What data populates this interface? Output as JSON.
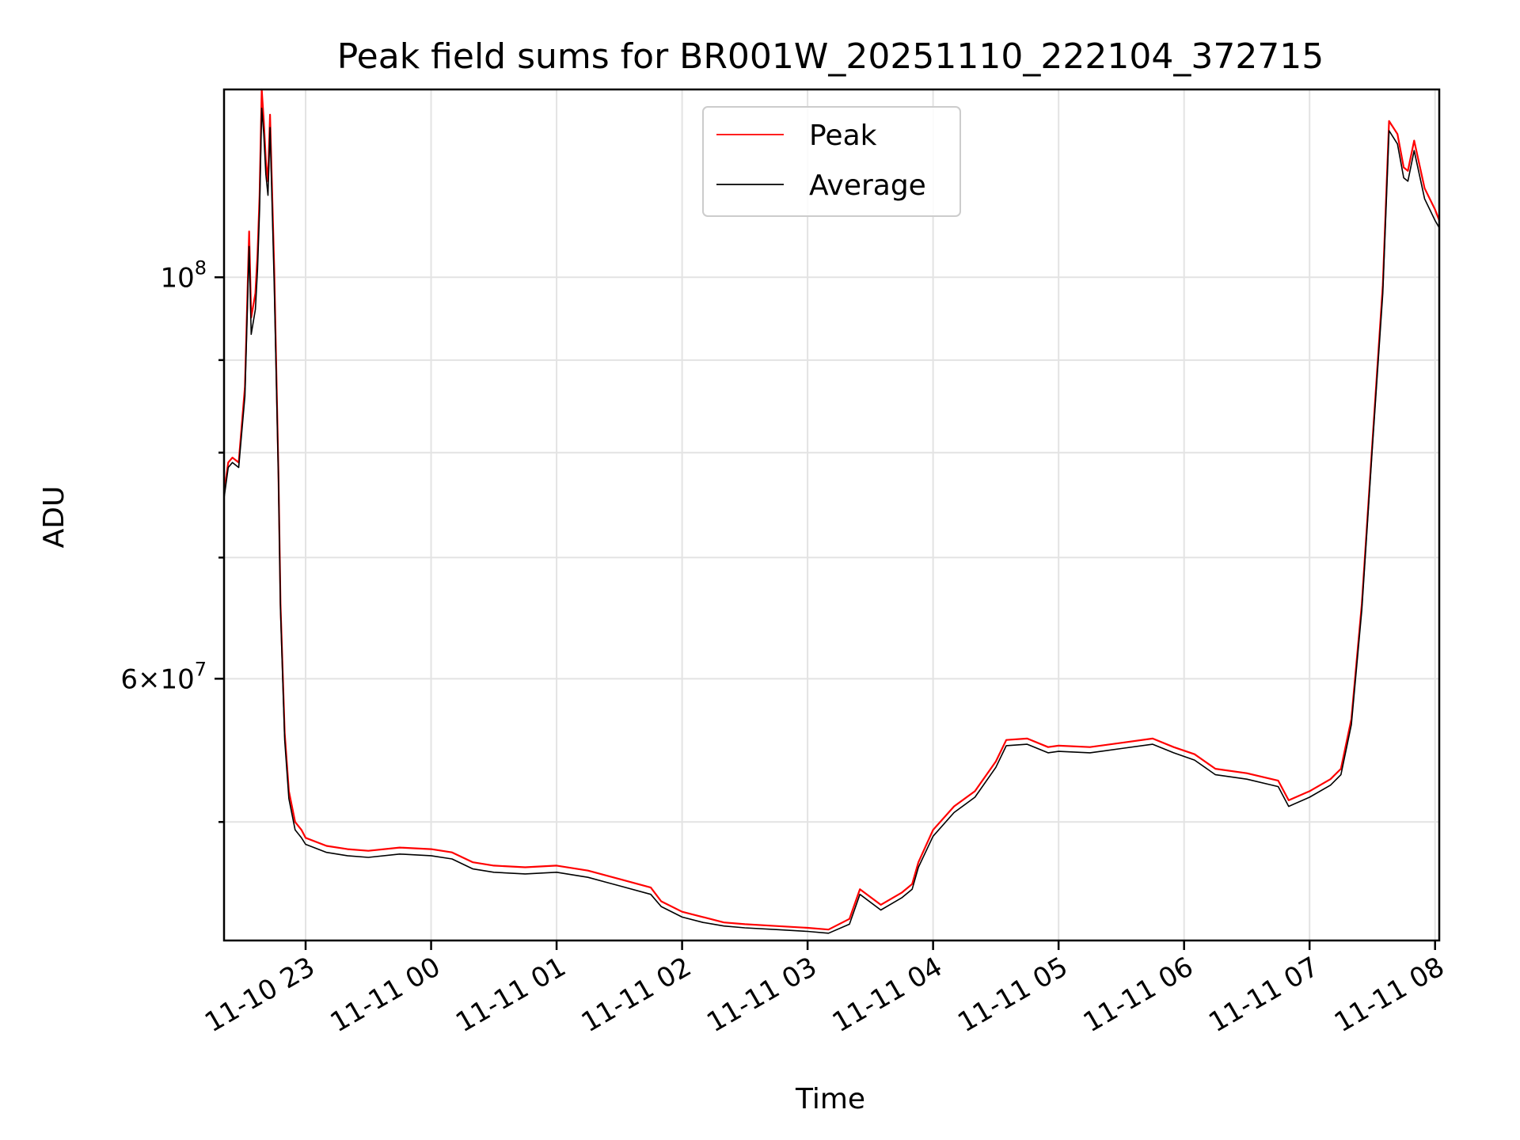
{
  "chart_data": {
    "type": "line",
    "title": "Peak field sums for BR001W_20251110_222104_372715",
    "xlabel": "Time",
    "ylabel": "ADU",
    "yscale": "log",
    "grid": true,
    "legend": "top-center",
    "xlim": [
      "2025-11-10 22:21",
      "2025-11-11 08:02"
    ],
    "ylim": [
      43000000,
      127000000
    ],
    "x_ticks": [
      {
        "value": "2025-11-10 23:00",
        "label": "11-10 23"
      },
      {
        "value": "2025-11-11 00:00",
        "label": "11-11 00"
      },
      {
        "value": "2025-11-11 01:00",
        "label": "11-11 01"
      },
      {
        "value": "2025-11-11 02:00",
        "label": "11-11 02"
      },
      {
        "value": "2025-11-11 03:00",
        "label": "11-11 03"
      },
      {
        "value": "2025-11-11 04:00",
        "label": "11-11 04"
      },
      {
        "value": "2025-11-11 05:00",
        "label": "11-11 05"
      },
      {
        "value": "2025-11-11 06:00",
        "label": "11-11 06"
      },
      {
        "value": "2025-11-11 07:00",
        "label": "11-11 07"
      },
      {
        "value": "2025-11-11 08:00",
        "label": "11-11 08"
      }
    ],
    "y_ticks_major": [
      {
        "value": 60000000,
        "label_base": "6×10",
        "label_exp": "7"
      },
      {
        "value": 100000000,
        "label_base": "10",
        "label_exp": "8"
      }
    ],
    "y_ticks_minor": [
      50000000,
      70000000,
      80000000,
      90000000
    ],
    "series": [
      {
        "name": "Peak",
        "color": "#ff0000",
        "x": [
          "2025-11-10 22:21",
          "2025-11-10 22:23",
          "2025-11-10 22:25",
          "2025-11-10 22:28",
          "2025-11-10 22:31",
          "2025-11-10 22:33",
          "2025-11-10 22:34",
          "2025-11-10 22:36",
          "2025-11-10 22:37",
          "2025-11-10 22:38",
          "2025-11-10 22:39",
          "2025-11-10 22:40",
          "2025-11-10 22:41",
          "2025-11-10 22:42",
          "2025-11-10 22:43",
          "2025-11-10 22:45",
          "2025-11-10 22:47",
          "2025-11-10 22:48",
          "2025-11-10 22:50",
          "2025-11-10 22:52",
          "2025-11-10 22:55",
          "2025-11-10 22:58",
          "2025-11-10 23:00",
          "2025-11-10 23:10",
          "2025-11-10 23:20",
          "2025-11-10 23:30",
          "2025-11-10 23:45",
          "2025-11-11 00:00",
          "2025-11-11 00:10",
          "2025-11-11 00:20",
          "2025-11-11 00:30",
          "2025-11-11 00:45",
          "2025-11-11 01:00",
          "2025-11-11 01:15",
          "2025-11-11 01:30",
          "2025-11-11 01:45",
          "2025-11-11 01:50",
          "2025-11-11 02:00",
          "2025-11-11 02:10",
          "2025-11-11 02:20",
          "2025-11-11 02:30",
          "2025-11-11 02:45",
          "2025-11-11 03:00",
          "2025-11-11 03:10",
          "2025-11-11 03:20",
          "2025-11-11 03:25",
          "2025-11-11 03:35",
          "2025-11-11 03:45",
          "2025-11-11 03:50",
          "2025-11-11 03:53",
          "2025-11-11 04:00",
          "2025-11-11 04:10",
          "2025-11-11 04:20",
          "2025-11-11 04:30",
          "2025-11-11 04:35",
          "2025-11-11 04:45",
          "2025-11-11 04:55",
          "2025-11-11 05:00",
          "2025-11-11 05:15",
          "2025-11-11 05:30",
          "2025-11-11 05:45",
          "2025-11-11 05:55",
          "2025-11-11 06:05",
          "2025-11-11 06:15",
          "2025-11-11 06:30",
          "2025-11-11 06:45",
          "2025-11-11 06:50",
          "2025-11-11 07:00",
          "2025-11-11 07:10",
          "2025-11-11 07:15",
          "2025-11-11 07:20",
          "2025-11-11 07:25",
          "2025-11-11 07:30",
          "2025-11-11 07:35",
          "2025-11-11 07:38",
          "2025-11-11 07:42",
          "2025-11-11 07:45",
          "2025-11-11 07:47",
          "2025-11-11 07:50",
          "2025-11-11 07:55",
          "2025-11-11 08:00",
          "2025-11-11 08:02"
        ],
        "values": [
          76000000,
          79000000,
          79500000,
          79000000,
          87000000,
          106000000,
          95000000,
          98000000,
          103000000,
          111000000,
          127000000,
          122000000,
          116000000,
          113000000,
          123000000,
          101000000,
          78000000,
          66000000,
          56000000,
          52000000,
          50000000,
          49500000,
          49000000,
          48500000,
          48300000,
          48200000,
          48400000,
          48300000,
          48100000,
          47500000,
          47300000,
          47200000,
          47300000,
          47000000,
          46500000,
          46000000,
          45200000,
          44600000,
          44300000,
          44000000,
          43900000,
          43800000,
          43700000,
          43600000,
          44200000,
          45900000,
          45000000,
          45700000,
          46200000,
          47500000,
          49500000,
          51000000,
          52000000,
          54000000,
          55500000,
          55600000,
          55000000,
          55100000,
          55000000,
          55300000,
          55600000,
          55000000,
          54500000,
          53500000,
          53200000,
          52700000,
          51400000,
          52000000,
          52800000,
          53500000,
          57000000,
          66000000,
          81000000,
          99000000,
          122000000,
          120000000,
          115000000,
          114500000,
          119000000,
          112000000,
          109000000,
          107500000
        ]
      },
      {
        "name": "Average",
        "color": "#000000",
        "x": [
          "2025-11-10 22:21",
          "2025-11-10 22:23",
          "2025-11-10 22:25",
          "2025-11-10 22:28",
          "2025-11-10 22:31",
          "2025-11-10 22:33",
          "2025-11-10 22:34",
          "2025-11-10 22:36",
          "2025-11-10 22:37",
          "2025-11-10 22:38",
          "2025-11-10 22:39",
          "2025-11-10 22:40",
          "2025-11-10 22:41",
          "2025-11-10 22:42",
          "2025-11-10 22:43",
          "2025-11-10 22:45",
          "2025-11-10 22:47",
          "2025-11-10 22:48",
          "2025-11-10 22:50",
          "2025-11-10 22:52",
          "2025-11-10 22:55",
          "2025-11-10 22:58",
          "2025-11-10 23:00",
          "2025-11-10 23:10",
          "2025-11-10 23:20",
          "2025-11-10 23:30",
          "2025-11-10 23:45",
          "2025-11-11 00:00",
          "2025-11-11 00:10",
          "2025-11-11 00:20",
          "2025-11-11 00:30",
          "2025-11-11 00:45",
          "2025-11-11 01:00",
          "2025-11-11 01:15",
          "2025-11-11 01:30",
          "2025-11-11 01:45",
          "2025-11-11 01:50",
          "2025-11-11 02:00",
          "2025-11-11 02:10",
          "2025-11-11 02:20",
          "2025-11-11 02:30",
          "2025-11-11 02:45",
          "2025-11-11 03:00",
          "2025-11-11 03:10",
          "2025-11-11 03:20",
          "2025-11-11 03:25",
          "2025-11-11 03:35",
          "2025-11-11 03:45",
          "2025-11-11 03:50",
          "2025-11-11 03:53",
          "2025-11-11 04:00",
          "2025-11-11 04:10",
          "2025-11-11 04:20",
          "2025-11-11 04:30",
          "2025-11-11 04:35",
          "2025-11-11 04:45",
          "2025-11-11 04:55",
          "2025-11-11 05:00",
          "2025-11-11 05:15",
          "2025-11-11 05:30",
          "2025-11-11 05:45",
          "2025-11-11 05:55",
          "2025-11-11 06:05",
          "2025-11-11 06:15",
          "2025-11-11 06:30",
          "2025-11-11 06:45",
          "2025-11-11 06:50",
          "2025-11-11 07:00",
          "2025-11-11 07:10",
          "2025-11-11 07:15",
          "2025-11-11 07:20",
          "2025-11-11 07:25",
          "2025-11-11 07:30",
          "2025-11-11 07:35",
          "2025-11-11 07:38",
          "2025-11-11 07:42",
          "2025-11-11 07:45",
          "2025-11-11 07:47",
          "2025-11-11 07:50",
          "2025-11-11 07:55",
          "2025-11-11 08:00",
          "2025-11-11 08:02"
        ],
        "values": [
          75500000,
          78500000,
          79000000,
          78500000,
          86000000,
          104000000,
          93000000,
          96000000,
          101000000,
          109000000,
          124000000,
          120000000,
          114000000,
          111000000,
          121000000,
          99000000,
          77500000,
          65500000,
          55500000,
          51500000,
          49500000,
          49000000,
          48600000,
          48100000,
          47900000,
          47800000,
          48000000,
          47900000,
          47700000,
          47100000,
          46900000,
          46800000,
          46900000,
          46600000,
          46100000,
          45600000,
          44900000,
          44300000,
          44000000,
          43800000,
          43700000,
          43600000,
          43500000,
          43400000,
          43900000,
          45600000,
          44700000,
          45400000,
          45900000,
          47200000,
          49100000,
          50600000,
          51600000,
          53600000,
          55100000,
          55200000,
          54600000,
          54700000,
          54600000,
          54900000,
          55200000,
          54600000,
          54100000,
          53100000,
          52800000,
          52300000,
          51000000,
          51600000,
          52400000,
          53100000,
          56600000,
          65500000,
          80500000,
          98000000,
          120500000,
          118500000,
          113500000,
          113000000,
          117500000,
          110500000,
          107500000,
          106500000
        ]
      }
    ]
  }
}
